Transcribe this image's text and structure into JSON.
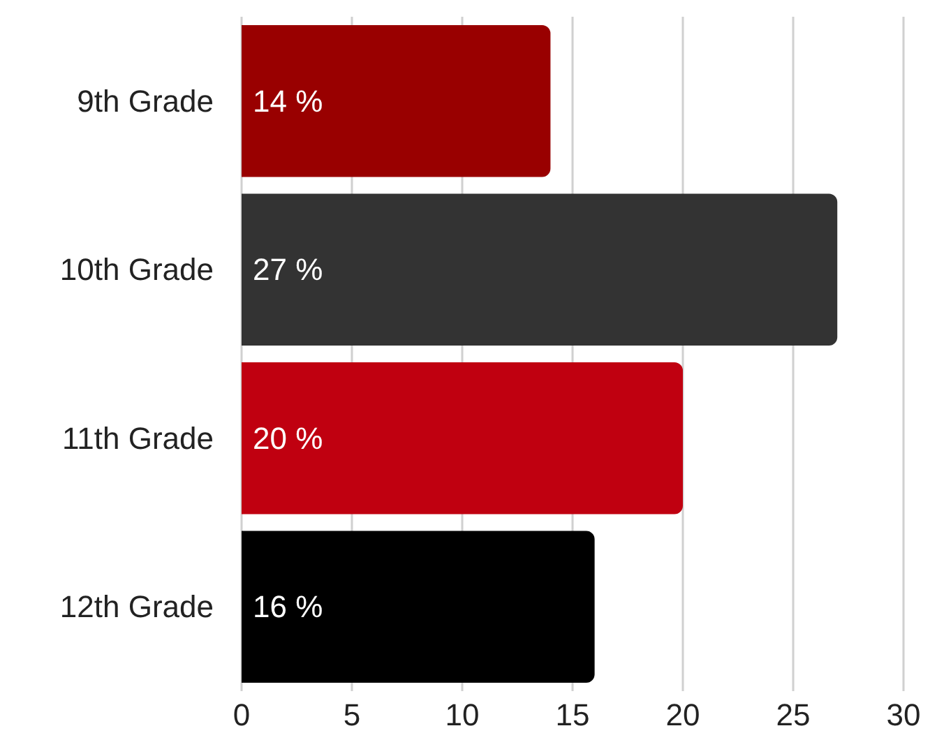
{
  "chart_data": {
    "type": "bar",
    "orientation": "horizontal",
    "categories": [
      "9th Grade",
      "10th Grade",
      "11th Grade",
      "12th Grade"
    ],
    "values": [
      14,
      27,
      20,
      16
    ],
    "colors": [
      "#990000",
      "#333333",
      "#c00010",
      "#000000"
    ],
    "value_labels": [
      "14 %",
      "27 %",
      "20 %",
      "16 %"
    ],
    "xlim": [
      0,
      30
    ],
    "xticks": [
      0,
      5,
      10,
      15,
      20,
      25,
      30
    ],
    "grid": "x"
  }
}
